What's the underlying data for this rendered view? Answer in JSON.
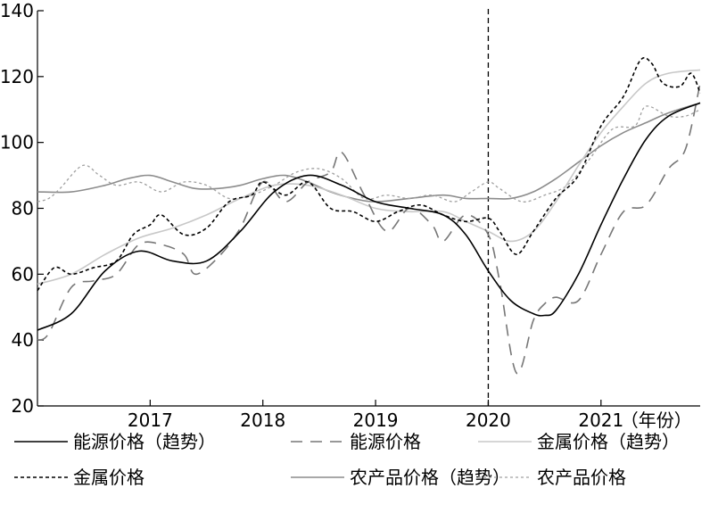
{
  "chart_data": {
    "type": "line",
    "x_unit_label": "（年份）",
    "x_ticks": [
      "2017",
      "2018",
      "2019",
      "2020",
      "2021"
    ],
    "y_ticks": [
      20,
      40,
      60,
      80,
      100,
      120,
      140
    ],
    "ylim": [
      20,
      140
    ],
    "xlim": [
      2016.0,
      2021.88
    ],
    "marker_x": 2020.0,
    "grid": false,
    "legend_position": "bottom",
    "series": [
      {
        "name": "能源价格（趋势）",
        "color": "#000000",
        "dash": "solid",
        "x": [
          2016.0,
          2016.3,
          2016.6,
          2016.9,
          2017.2,
          2017.5,
          2017.8,
          2018.1,
          2018.4,
          2018.7,
          2019.0,
          2019.3,
          2019.6,
          2019.8,
          2020.0,
          2020.2,
          2020.4,
          2020.5,
          2020.6,
          2020.8,
          2021.0,
          2021.2,
          2021.4,
          2021.6,
          2021.88
        ],
        "values": [
          43,
          48,
          61,
          67,
          64,
          64,
          73,
          85,
          90,
          87,
          82,
          80,
          78,
          72,
          61,
          52,
          48,
          47.5,
          49,
          60,
          75,
          89,
          101,
          108,
          112
        ]
      },
      {
        "name": "能源价格",
        "color": "#777777",
        "dash": "long-dash",
        "x": [
          2016.0,
          2016.1,
          2016.3,
          2016.5,
          2016.7,
          2016.9,
          2017.1,
          2017.3,
          2017.4,
          2017.6,
          2017.8,
          2018.0,
          2018.2,
          2018.4,
          2018.6,
          2018.7,
          2018.9,
          2019.1,
          2019.3,
          2019.5,
          2019.6,
          2019.8,
          2020.0,
          2020.1,
          2020.25,
          2020.4,
          2020.5,
          2020.6,
          2020.8,
          2021.0,
          2021.2,
          2021.4,
          2021.6,
          2021.75,
          2021.88
        ],
        "values": [
          40,
          42,
          56,
          58,
          60,
          69,
          69,
          66,
          60,
          65,
          74,
          88,
          82,
          88,
          91,
          97,
          84,
          73,
          80,
          75,
          70,
          78,
          72,
          58,
          30,
          46,
          51,
          53,
          52,
          66,
          79,
          81,
          92,
          98,
          118
        ]
      },
      {
        "name": "金属价格（趋势）",
        "color": "#c8c8c8",
        "dash": "solid",
        "x": [
          2016.0,
          2016.3,
          2016.6,
          2016.9,
          2017.2,
          2017.5,
          2017.8,
          2018.1,
          2018.4,
          2018.7,
          2019.0,
          2019.3,
          2019.6,
          2019.8,
          2020.0,
          2020.2,
          2020.4,
          2020.6,
          2020.8,
          2021.0,
          2021.2,
          2021.4,
          2021.6,
          2021.88
        ],
        "values": [
          57,
          60,
          66,
          71,
          74,
          78,
          83,
          87,
          87,
          84,
          80,
          79,
          79,
          76,
          73,
          70,
          73,
          82,
          93,
          103,
          111,
          118,
          121,
          122
        ]
      },
      {
        "name": "金属价格",
        "color": "#000000",
        "dash": "short-dash",
        "x": [
          2016.0,
          2016.15,
          2016.3,
          2016.5,
          2016.7,
          2016.85,
          2017.0,
          2017.1,
          2017.3,
          2017.5,
          2017.7,
          2017.9,
          2018.0,
          2018.2,
          2018.4,
          2018.6,
          2018.8,
          2019.0,
          2019.2,
          2019.4,
          2019.6,
          2019.8,
          2020.0,
          2020.1,
          2020.25,
          2020.4,
          2020.6,
          2020.8,
          2021.0,
          2021.2,
          2021.35,
          2021.45,
          2021.55,
          2021.7,
          2021.8,
          2021.88
        ],
        "values": [
          55,
          62,
          60,
          62,
          64,
          72,
          75,
          78,
          72,
          74,
          82,
          84,
          88,
          84,
          88,
          80,
          79,
          76,
          79,
          81,
          78,
          76,
          77,
          73,
          66,
          73,
          83,
          90,
          105,
          114,
          125,
          124,
          118,
          117,
          121,
          115
        ]
      },
      {
        "name": "农产品价格（趋势）",
        "color": "#8c8c8c",
        "dash": "solid",
        "x": [
          2016.0,
          2016.3,
          2016.6,
          2016.8,
          2017.0,
          2017.2,
          2017.4,
          2017.6,
          2017.8,
          2018.0,
          2018.2,
          2018.4,
          2018.6,
          2018.8,
          2019.0,
          2019.3,
          2019.6,
          2019.8,
          2020.0,
          2020.2,
          2020.4,
          2020.6,
          2020.8,
          2021.0,
          2021.2,
          2021.4,
          2021.6,
          2021.88
        ],
        "values": [
          85,
          85,
          87,
          89,
          90,
          88,
          86,
          86,
          87,
          89,
          90,
          88,
          85,
          83,
          82,
          83,
          84,
          83,
          83,
          83,
          85,
          89,
          94,
          99,
          103,
          106,
          109,
          112
        ]
      },
      {
        "name": "农产品价格",
        "color": "#a0a0a0",
        "dash": "fine-dash",
        "x": [
          2016.0,
          2016.1,
          2016.2,
          2016.4,
          2016.55,
          2016.7,
          2016.9,
          2017.1,
          2017.3,
          2017.5,
          2017.7,
          2017.9,
          2018.1,
          2018.3,
          2018.5,
          2018.7,
          2018.9,
          2019.1,
          2019.3,
          2019.5,
          2019.7,
          2019.85,
          2020.0,
          2020.1,
          2020.3,
          2020.5,
          2020.7,
          2020.9,
          2021.1,
          2021.3,
          2021.4,
          2021.6,
          2021.75,
          2021.88
        ],
        "values": [
          82,
          83,
          86,
          93,
          90,
          87,
          88,
          85,
          88,
          87,
          83,
          84,
          87,
          91,
          92,
          89,
          83,
          84,
          83,
          84,
          82,
          85,
          88,
          86,
          82,
          84,
          87,
          95,
          104,
          105,
          111,
          108,
          108,
          110
        ]
      }
    ]
  }
}
